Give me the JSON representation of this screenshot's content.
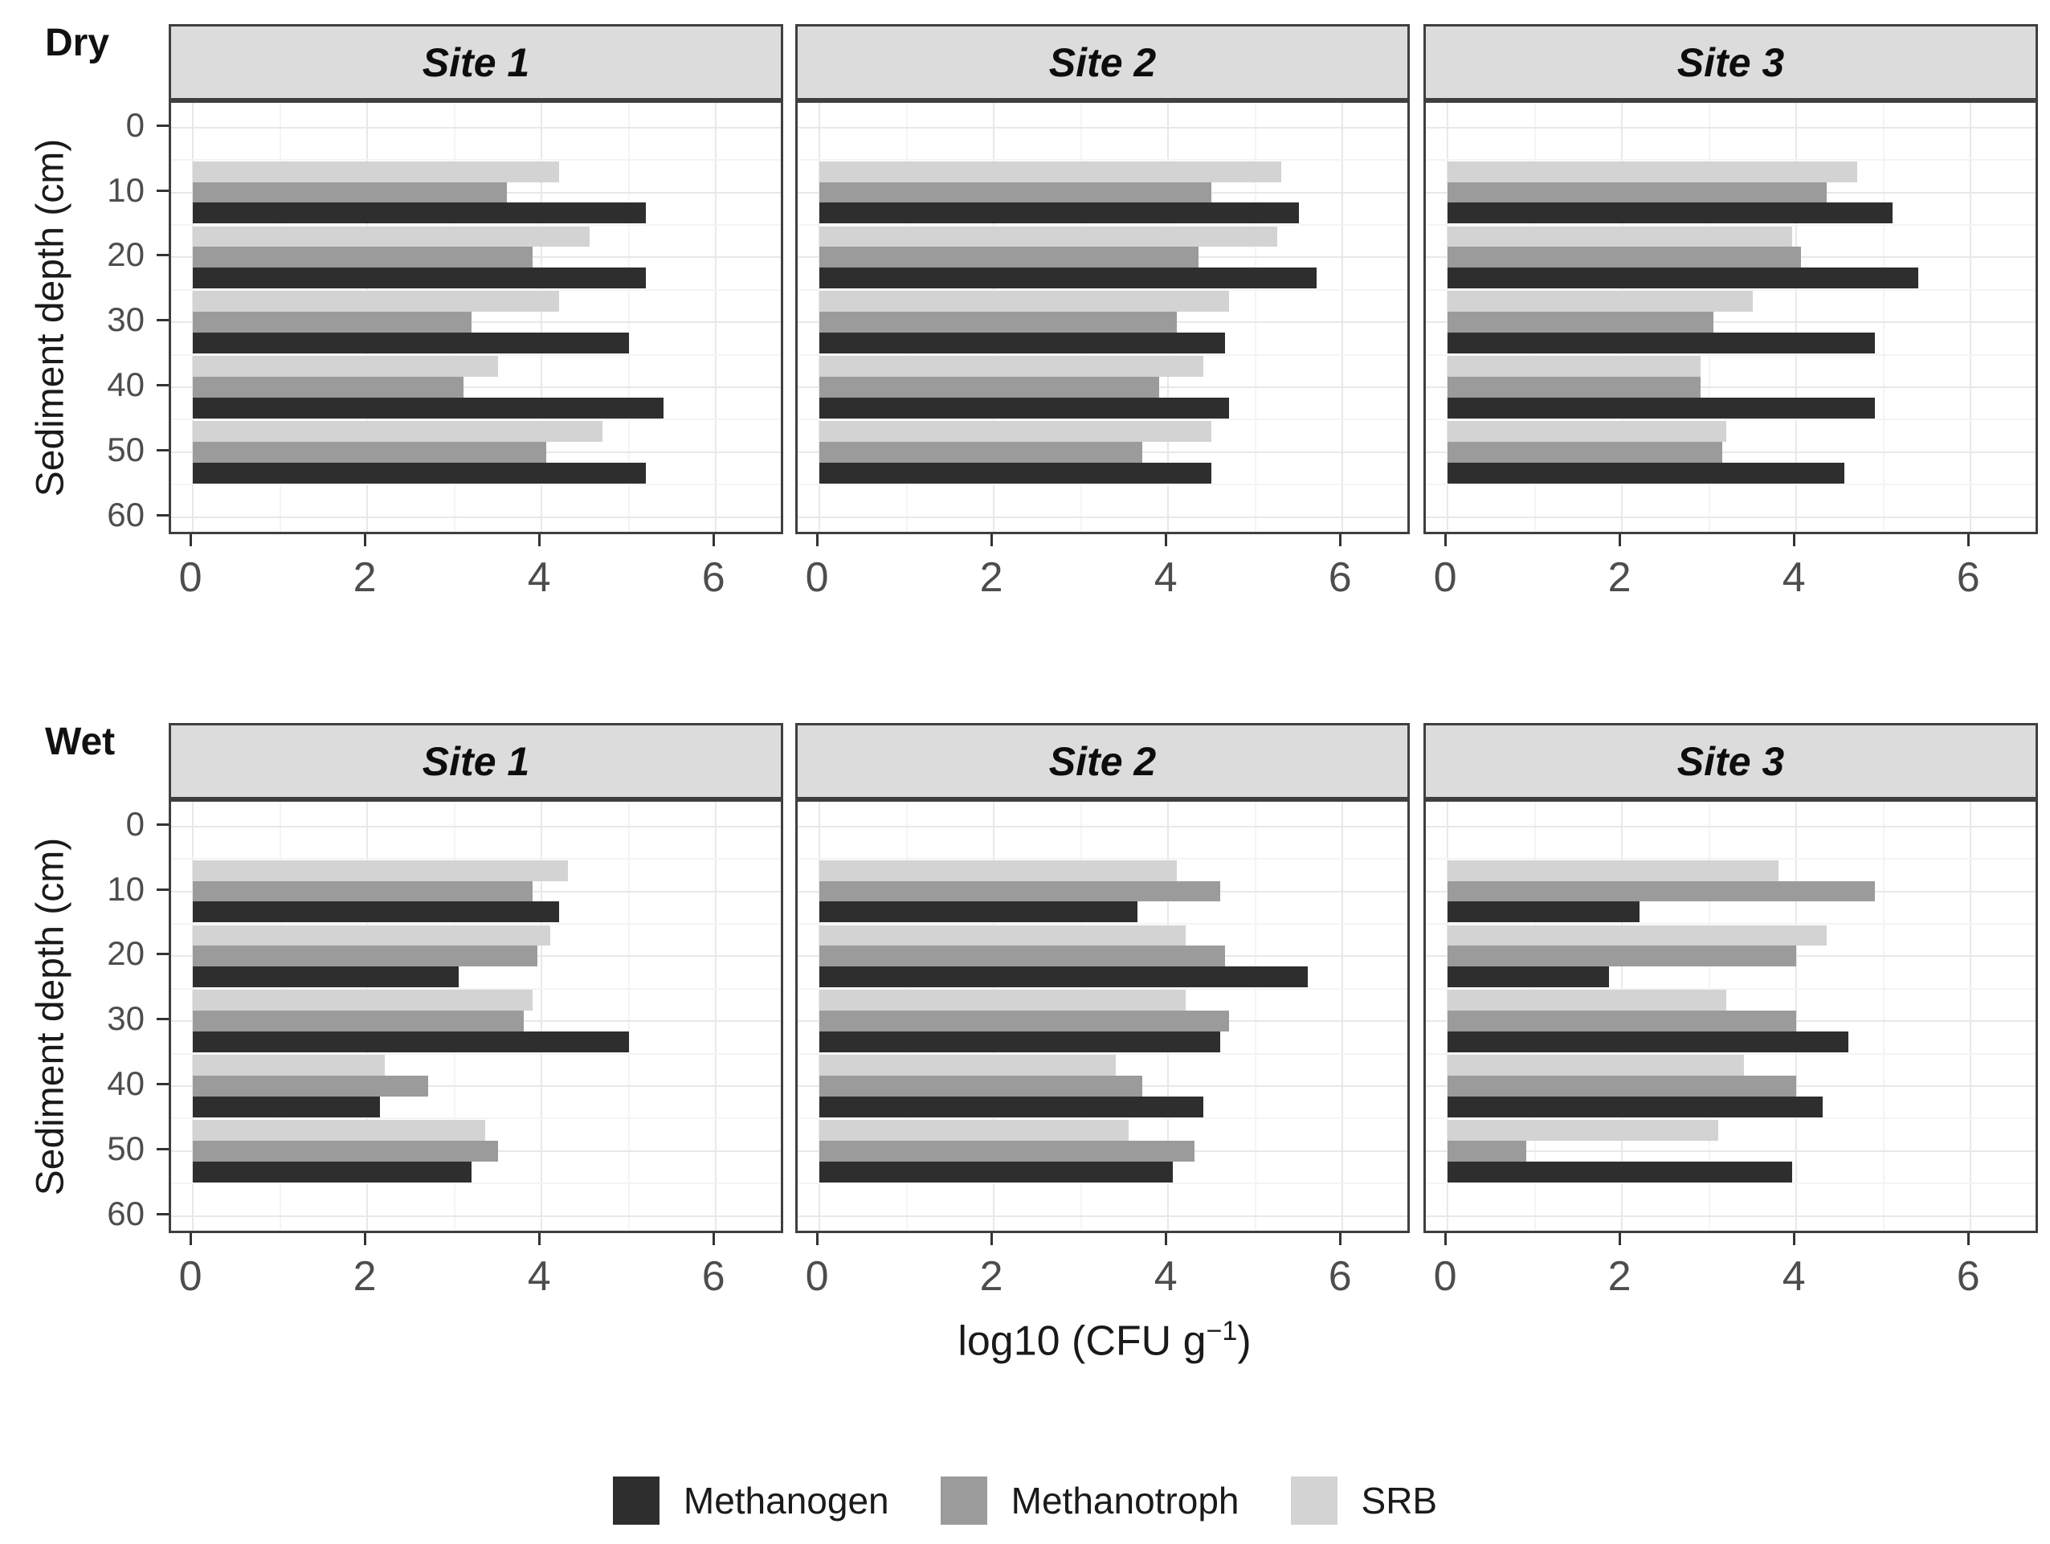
{
  "colors": {
    "methanogen": "#2e2e2e",
    "methanotroph": "#9b9b9b",
    "srb": "#d3d3d3",
    "strip_bg": "#dcdcdc",
    "panel_border": "#3f3f3f",
    "grid_major": "#e8e8e8",
    "grid_minor": "#f4f4f4",
    "tick_text": "#4d4d4d",
    "text": "#1a1a1a"
  },
  "chart_data": {
    "type": "bar",
    "orientation": "horizontal",
    "xlabel": "log10 (CFU g⁻¹)",
    "xlabel_parts": {
      "pre": "log10  (CFU  g",
      "sup": "−1",
      "post": ")"
    },
    "ylabel": "Sediment depth (cm)",
    "x_ticks": [
      0,
      2,
      4,
      6
    ],
    "x_range": [
      -0.25,
      6.8
    ],
    "y_ticks": [
      0,
      10,
      20,
      30,
      40,
      50,
      60
    ],
    "y_range_cm": [
      -3.8,
      63.0
    ],
    "grid": true,
    "facet_rows": [
      "Dry",
      "Wet"
    ],
    "facet_cols": [
      "Site 1",
      "Site 2",
      "Site 3"
    ],
    "depths_cm": [
      10,
      20,
      30,
      40,
      50
    ],
    "series_order_top_to_bottom": [
      "SRB",
      "Methanotroph",
      "Methanogen"
    ],
    "legend": [
      {
        "label": "Methanogen",
        "color": "#2e2e2e"
      },
      {
        "label": "Methanotroph",
        "color": "#9b9b9b"
      },
      {
        "label": "SRB",
        "color": "#d3d3d3"
      }
    ],
    "legend_position": "bottom",
    "panels": [
      {
        "facet_row": "Dry",
        "facet_col": "Site 1",
        "values": {
          "Methanogen": [
            5.2,
            5.2,
            5.0,
            5.4,
            5.2
          ],
          "Methanotroph": [
            3.6,
            3.9,
            3.2,
            3.1,
            4.05
          ],
          "SRB": [
            4.2,
            4.55,
            4.2,
            3.5,
            4.7
          ]
        }
      },
      {
        "facet_row": "Dry",
        "facet_col": "Site 2",
        "values": {
          "Methanogen": [
            5.5,
            5.7,
            4.65,
            4.7,
            4.5
          ],
          "Methanotroph": [
            4.5,
            4.35,
            4.1,
            3.9,
            3.7
          ],
          "SRB": [
            5.3,
            5.25,
            4.7,
            4.4,
            4.5
          ]
        }
      },
      {
        "facet_row": "Dry",
        "facet_col": "Site 3",
        "values": {
          "Methanogen": [
            5.1,
            5.4,
            4.9,
            4.9,
            4.55
          ],
          "Methanotroph": [
            4.35,
            4.05,
            3.05,
            2.9,
            3.15
          ],
          "SRB": [
            4.7,
            3.95,
            3.5,
            2.9,
            3.2
          ]
        }
      },
      {
        "facet_row": "Wet",
        "facet_col": "Site 1",
        "values": {
          "Methanogen": [
            4.2,
            3.05,
            5.0,
            2.15,
            3.2
          ],
          "Methanotroph": [
            3.9,
            3.95,
            3.8,
            2.7,
            3.5
          ],
          "SRB": [
            4.3,
            4.1,
            3.9,
            2.2,
            3.35
          ]
        }
      },
      {
        "facet_row": "Wet",
        "facet_col": "Site 2",
        "values": {
          "Methanogen": [
            3.65,
            5.6,
            4.6,
            4.4,
            4.05
          ],
          "Methanotroph": [
            4.6,
            4.65,
            4.7,
            3.7,
            4.3
          ],
          "SRB": [
            4.1,
            4.2,
            4.2,
            3.4,
            3.55
          ]
        }
      },
      {
        "facet_row": "Wet",
        "facet_col": "Site 3",
        "values": {
          "Methanogen": [
            2.2,
            1.85,
            4.6,
            4.3,
            3.95
          ],
          "Methanotroph": [
            4.9,
            4.0,
            4.0,
            4.0,
            0.9
          ],
          "SRB": [
            3.8,
            4.35,
            3.2,
            3.4,
            3.1
          ]
        }
      }
    ]
  }
}
